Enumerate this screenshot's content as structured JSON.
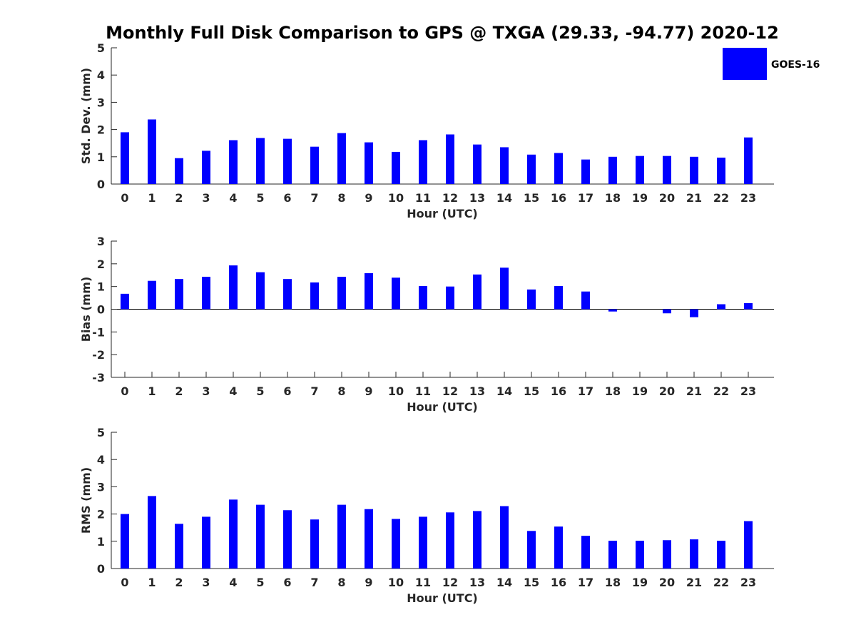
{
  "chart_data": {
    "title": "Monthly Full Disk Comparison to GPS @ TXGA (29.33, -94.77) 2020-12",
    "legend": {
      "label": "GOES-16",
      "position": "top-right"
    },
    "colors": {
      "bar": "#0000ff",
      "axis": "#262626"
    },
    "panels": [
      {
        "type": "bar",
        "xlabel": "Hour (UTC)",
        "ylabel": "Std. Dev. (mm)",
        "ylim": [
          0,
          5
        ],
        "yticks": [
          "0",
          "1",
          "2",
          "3",
          "4",
          "5"
        ],
        "categories": [
          "0",
          "1",
          "2",
          "3",
          "4",
          "5",
          "6",
          "7",
          "8",
          "9",
          "10",
          "11",
          "12",
          "13",
          "14",
          "15",
          "16",
          "17",
          "18",
          "19",
          "20",
          "21",
          "22",
          "23"
        ],
        "series": [
          {
            "name": "GOES-16",
            "values": [
              1.9,
              2.37,
              0.95,
              1.22,
              1.61,
              1.69,
              1.66,
              1.37,
              1.87,
              1.53,
              1.18,
              1.61,
              1.82,
              1.45,
              1.35,
              1.08,
              1.14,
              0.9,
              1.0,
              1.03,
              1.03,
              1.0,
              0.97,
              1.71
            ]
          }
        ]
      },
      {
        "type": "bar",
        "xlabel": "Hour (UTC)",
        "ylabel": "Bias (mm)",
        "ylim": [
          -3,
          3
        ],
        "yticks": [
          "-3",
          "-2",
          "-1",
          "0",
          "1",
          "2",
          "3"
        ],
        "categories": [
          "0",
          "1",
          "2",
          "3",
          "4",
          "5",
          "6",
          "7",
          "8",
          "9",
          "10",
          "11",
          "12",
          "13",
          "14",
          "15",
          "16",
          "17",
          "18",
          "19",
          "20",
          "21",
          "22",
          "23"
        ],
        "series": [
          {
            "name": "GOES-16",
            "values": [
              0.68,
              1.25,
              1.33,
              1.43,
              1.93,
              1.63,
              1.33,
              1.18,
              1.43,
              1.59,
              1.39,
              1.02,
              1.0,
              1.53,
              1.83,
              0.87,
              1.02,
              0.78,
              -0.1,
              0.0,
              -0.18,
              -0.35,
              0.22,
              0.27
            ]
          }
        ]
      },
      {
        "type": "bar",
        "xlabel": "Hour (UTC)",
        "ylabel": "RMS (mm)",
        "ylim": [
          0,
          5
        ],
        "yticks": [
          "0",
          "1",
          "2",
          "3",
          "4",
          "5"
        ],
        "categories": [
          "0",
          "1",
          "2",
          "3",
          "4",
          "5",
          "6",
          "7",
          "8",
          "9",
          "10",
          "11",
          "12",
          "13",
          "14",
          "15",
          "16",
          "17",
          "18",
          "19",
          "20",
          "21",
          "22",
          "23"
        ],
        "series": [
          {
            "name": "GOES-16",
            "values": [
              2.0,
              2.66,
              1.64,
              1.9,
              2.53,
              2.34,
              2.14,
              1.8,
              2.34,
              2.18,
              1.82,
              1.9,
              2.06,
              2.11,
              2.29,
              1.38,
              1.54,
              1.2,
              1.02,
              1.02,
              1.04,
              1.07,
              1.02,
              1.74
            ]
          }
        ]
      }
    ]
  }
}
